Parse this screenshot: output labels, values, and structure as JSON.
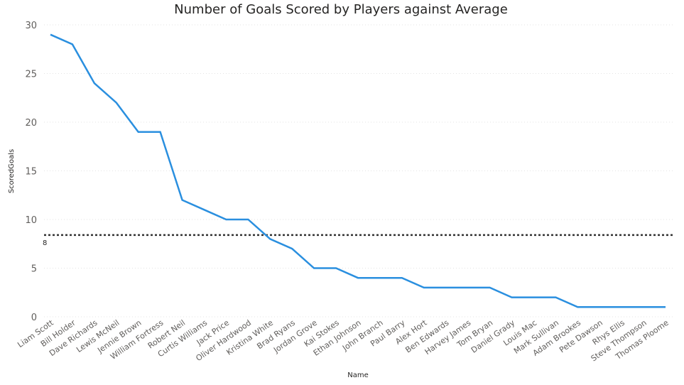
{
  "chart_data": {
    "type": "line",
    "title": "Number of Goals Scored by Players against Average",
    "xlabel": "Name",
    "ylabel": "ScoredGoals",
    "ylim": [
      0,
      30
    ],
    "yticks": [
      0,
      5,
      10,
      15,
      20,
      25,
      30
    ],
    "grid": true,
    "legend": "none",
    "categories": [
      "Liam Scott",
      "Bill Holder",
      "Dave Richards",
      "Lewis McNeil",
      "Jennie Brown",
      "William Fortress",
      "Robert Neil",
      "Curtis Williams",
      "Jack Price",
      "Oliver Hardwood",
      "Kristina White",
      "Brad Ryans",
      "Jordan Grove",
      "Kai Stokes",
      "Ethan Johnson",
      "John Branch",
      "Paul Barry",
      "Alex Hort",
      "Ben Edwards",
      "Harvey James",
      "Tom Bryan",
      "Daniel Grady",
      "Louis Mac",
      "Mark Sullivan",
      "Adam Brookes",
      "Pete Dawson",
      "Rhys Ellis",
      "Steve Thompson",
      "Thomas Ploome"
    ],
    "series": [
      {
        "values": [
          29,
          28,
          24,
          22,
          19,
          19,
          12,
          11,
          10,
          10,
          8,
          7,
          5,
          5,
          4,
          4,
          4,
          3,
          3,
          3,
          3,
          2,
          2,
          2,
          1,
          1,
          1,
          1,
          1
        ],
        "color": "#2a8fdf"
      }
    ],
    "average_line": {
      "value": 8.4,
      "label": "8",
      "color": "#333333",
      "style": "dotted"
    },
    "colors": {
      "gridline": "#e3e3e3",
      "tick_text": "#605e5c",
      "title_text": "#252423",
      "axis_title_text": "#252423"
    }
  }
}
